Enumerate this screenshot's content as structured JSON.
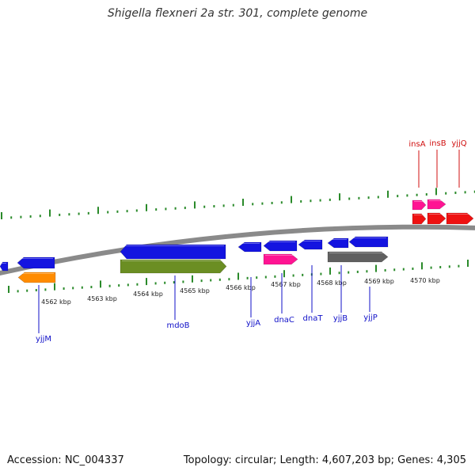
{
  "title": "Shigella flexneri 2a str. 301, complete genome",
  "footer": {
    "accession": "Accession: NC_004337",
    "topology": "Topology: circular; Length: 4,607,203 bp; Genes: 4,305"
  },
  "colors": {
    "backbone": "#8a8a8a",
    "tick": "#2a8a2a",
    "label_blue": "#1010c8",
    "label_red": "#d01010",
    "gene_blue": "#1414e0",
    "gene_orange": "#ff8c00",
    "gene_olive": "#6b8e23",
    "gene_pink": "#ff1493",
    "gene_gray": "#606060",
    "gene_red": "#ee1111"
  },
  "scale_labels": [
    "4562 kbp",
    "4563 kbp",
    "4564 kbp",
    "4565 kbp",
    "4566 kbp",
    "4567 kbp",
    "4568 kbp",
    "4569 kbp",
    "4570 kbp"
  ],
  "gene_labels": [
    "yjjM",
    "mdoB",
    "yjjA",
    "dnaC",
    "dnaT",
    "yjjB",
    "yjjP",
    "insA",
    "insB",
    "yjjQ"
  ],
  "features": [
    {
      "ring": "inner-forward",
      "color": "gene_blue",
      "strand": "-"
    },
    {
      "ring": "inner-forward",
      "color": "gene_blue",
      "strand": "-"
    },
    {
      "ring": "inner-reverse",
      "color": "gene_orange",
      "strand": "-"
    },
    {
      "ring": "inner-forward",
      "color": "gene_blue",
      "strand": "-"
    },
    {
      "ring": "inner-reverse",
      "color": "gene_olive",
      "strand": "+"
    },
    {
      "ring": "inner-forward",
      "color": "gene_blue",
      "strand": "-"
    },
    {
      "ring": "inner-forward",
      "color": "gene_blue",
      "strand": "-"
    },
    {
      "ring": "inner-reverse",
      "color": "gene_pink",
      "strand": "+"
    },
    {
      "ring": "inner-forward",
      "color": "gene_blue",
      "strand": "-"
    },
    {
      "ring": "inner-forward",
      "color": "gene_blue",
      "strand": "-"
    },
    {
      "ring": "inner-forward",
      "color": "gene_blue",
      "strand": "-"
    },
    {
      "ring": "inner-reverse",
      "color": "gene_gray",
      "strand": "+"
    },
    {
      "ring": "outer-forward",
      "color": "gene_pink",
      "strand": "+"
    },
    {
      "ring": "outer-forward",
      "color": "gene_pink",
      "strand": "+"
    },
    {
      "ring": "outer-reverse",
      "color": "gene_red",
      "strand": "+"
    },
    {
      "ring": "outer-reverse",
      "color": "gene_red",
      "strand": "+"
    },
    {
      "ring": "outer-reverse",
      "color": "gene_red",
      "strand": "+"
    }
  ]
}
